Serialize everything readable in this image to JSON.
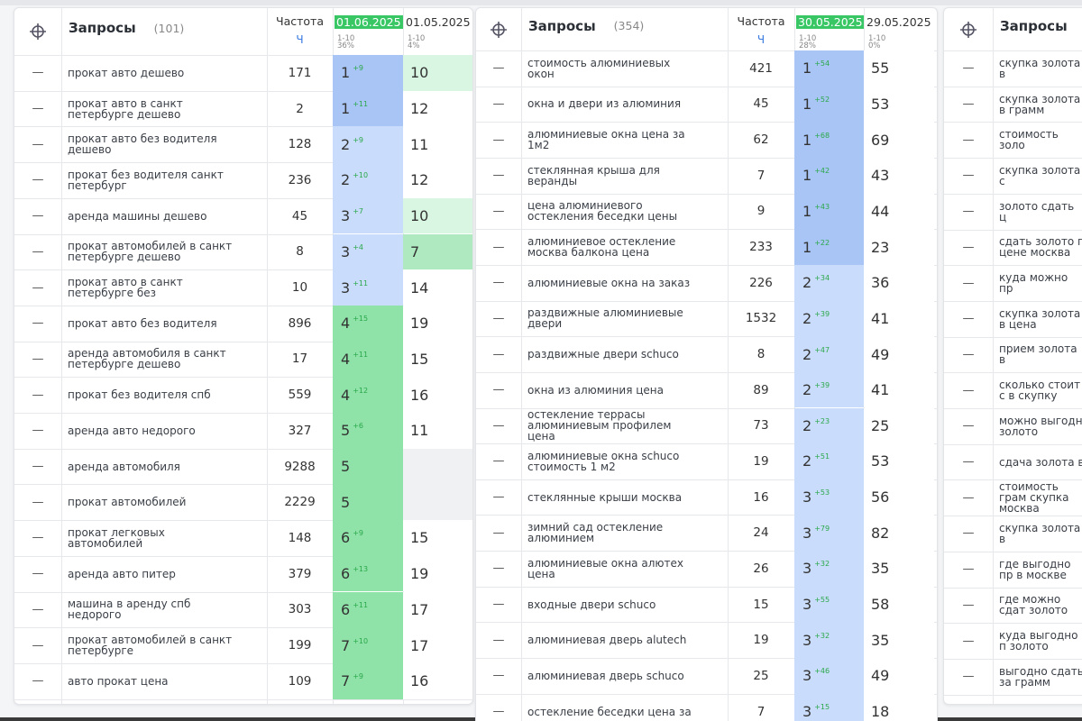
{
  "panels": [
    {
      "header": {
        "title": "Запросы",
        "count": "(101)",
        "frequency": "Частота",
        "freq_unit": "Ч",
        "date_current": "01.06.2025",
        "date_previous": "01.05.2025",
        "current_range": "1-10",
        "current_share": "36%",
        "previous_range": "1-10",
        "previous_share": "4%"
      },
      "rows": [
        {
          "query": "прокат авто дешево",
          "frequency": 171,
          "position": 1,
          "change": "+9",
          "previous": 10
        },
        {
          "query": "прокат авто в санкт петербурге дешево",
          "frequency": 2,
          "position": 1,
          "change": "+11",
          "previous": 12
        },
        {
          "query": "прокат авто без водителя дешево",
          "frequency": 128,
          "position": 2,
          "change": "+9",
          "previous": 11
        },
        {
          "query": "прокат без водителя санкт петербург",
          "frequency": 236,
          "position": 2,
          "change": "+10",
          "previous": 12
        },
        {
          "query": "аренда машины дешево",
          "frequency": 45,
          "position": 3,
          "change": "+7",
          "previous": 10
        },
        {
          "query": "прокат автомобилей в санкт петербурге дешево",
          "frequency": 8,
          "position": 3,
          "change": "+4",
          "previous": 7
        },
        {
          "query": "прокат авто в санкт петербурге без",
          "frequency": 10,
          "position": 3,
          "change": "+11",
          "previous": 14
        },
        {
          "query": "прокат авто без водителя",
          "frequency": 896,
          "position": 4,
          "change": "+15",
          "previous": 19
        },
        {
          "query": "аренда автомобиля в санкт петербурге дешево",
          "frequency": 17,
          "position": 4,
          "change": "+11",
          "previous": 15
        },
        {
          "query": "прокат без водителя спб",
          "frequency": 559,
          "position": 4,
          "change": "+12",
          "previous": 16
        },
        {
          "query": "аренда авто недорого",
          "frequency": 327,
          "position": 5,
          "change": "+6",
          "previous": 11
        },
        {
          "query": "аренда автомобиля",
          "frequency": 9288,
          "position": 5,
          "change": null,
          "previous": null
        },
        {
          "query": "прокат автомобилей",
          "frequency": 2229,
          "position": 5,
          "change": null,
          "previous": null
        },
        {
          "query": "прокат легковых автомобилей",
          "frequency": 148,
          "position": 6,
          "change": "+9",
          "previous": 15
        },
        {
          "query": "аренда авто питер",
          "frequency": 379,
          "position": 6,
          "change": "+13",
          "previous": 19
        },
        {
          "query": "машина в аренду спб недорого",
          "frequency": 303,
          "position": 6,
          "change": "+11",
          "previous": 17
        },
        {
          "query": "прокат автомобилей в санкт петербурге",
          "frequency": 199,
          "position": 7,
          "change": "+10",
          "previous": 17
        },
        {
          "query": "авто прокат цена",
          "frequency": 109,
          "position": 7,
          "change": "+9",
          "previous": 16
        }
      ]
    },
    {
      "header": {
        "title": "Запросы",
        "count": "(354)",
        "frequency": "Частота",
        "freq_unit": "Ч",
        "date_current": "30.05.2025",
        "date_previous": "29.05.2025",
        "current_range": "1-10",
        "current_share": "28%",
        "previous_range": "1-10",
        "previous_share": "0%"
      },
      "rows": [
        {
          "query": "стоимость алюминиевых окон",
          "frequency": 421,
          "position": 1,
          "change": "+54",
          "previous": 55
        },
        {
          "query": "окна и двери из алюминия",
          "frequency": 45,
          "position": 1,
          "change": "+52",
          "previous": 53
        },
        {
          "query": "алюминиевые окна цена за 1м2",
          "frequency": 62,
          "position": 1,
          "change": "+68",
          "previous": 69
        },
        {
          "query": "стеклянная крыша для веранды",
          "frequency": 7,
          "position": 1,
          "change": "+42",
          "previous": 43
        },
        {
          "query": "цена алюминиевого остекления беседки цены",
          "frequency": 9,
          "position": 1,
          "change": "+43",
          "previous": 44
        },
        {
          "query": "алюминиевое остекление москва балкона цена",
          "frequency": 233,
          "position": 1,
          "change": "+22",
          "previous": 23
        },
        {
          "query": "алюминиевые окна на заказ",
          "frequency": 226,
          "position": 2,
          "change": "+34",
          "previous": 36
        },
        {
          "query": "раздвижные алюминиевые двери",
          "frequency": 1532,
          "position": 2,
          "change": "+39",
          "previous": 41
        },
        {
          "query": "раздвижные двери schuco",
          "frequency": 8,
          "position": 2,
          "change": "+47",
          "previous": 49
        },
        {
          "query": "окна из алюминия цена",
          "frequency": 89,
          "position": 2,
          "change": "+39",
          "previous": 41
        },
        {
          "query": "остекление террасы алюминиевым профилем цена",
          "frequency": 73,
          "position": 2,
          "change": "+23",
          "previous": 25
        },
        {
          "query": "алюминиевые окна schuco стоимость 1 м2",
          "frequency": 19,
          "position": 2,
          "change": "+51",
          "previous": 53
        },
        {
          "query": "стеклянные крыши москва",
          "frequency": 16,
          "position": 3,
          "change": "+53",
          "previous": 56
        },
        {
          "query": "зимний сад остекление алюминием",
          "frequency": 24,
          "position": 3,
          "change": "+79",
          "previous": 82
        },
        {
          "query": "алюминиевые окна алютех цена",
          "frequency": 26,
          "position": 3,
          "change": "+32",
          "previous": 35
        },
        {
          "query": "входные двери schuco",
          "frequency": 15,
          "position": 3,
          "change": "+55",
          "previous": 58
        },
        {
          "query": "алюминиевая дверь alutech",
          "frequency": 19,
          "position": 3,
          "change": "+32",
          "previous": 35
        },
        {
          "query": "алюминиевая дверь schuco",
          "frequency": 25,
          "position": 3,
          "change": "+46",
          "previous": 49
        },
        {
          "query": "остекление беседки цена за",
          "frequency": 7,
          "position": 3,
          "change": "+15",
          "previous": 18
        }
      ]
    },
    {
      "header": {
        "title": "Запросы"
      },
      "rows": [
        {
          "query": "скупка золота в"
        },
        {
          "query": "скупка золота в грамм"
        },
        {
          "query": "стоимость золо"
        },
        {
          "query": "скупка золота с"
        },
        {
          "query": "золото сдать ц"
        },
        {
          "query": "сдать золото п цене москва"
        },
        {
          "query": "куда можно пр"
        },
        {
          "query": "скупка золота в цена"
        },
        {
          "query": "прием золота в"
        },
        {
          "query": "сколько стоит с в скупку"
        },
        {
          "query": "можно выгодн золото"
        },
        {
          "query": "сдача золота в"
        },
        {
          "query": "стоимость грам скупка москва"
        },
        {
          "query": "скупка золота в"
        },
        {
          "query": "где выгодно пр в москве"
        },
        {
          "query": "где можно сдат золото"
        },
        {
          "query": "куда выгодно п золото"
        },
        {
          "query": "выгодно сдать за грамм"
        }
      ]
    }
  ]
}
